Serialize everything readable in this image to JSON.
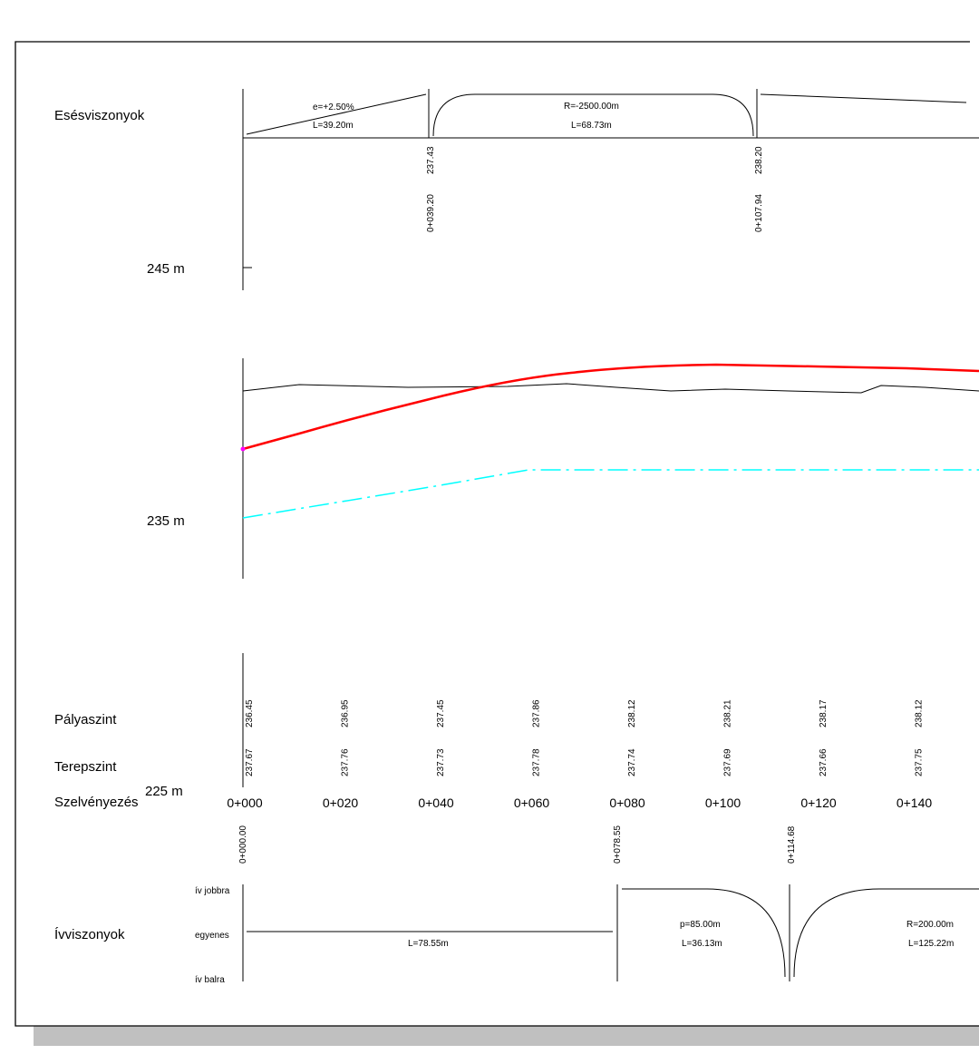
{
  "labels": {
    "esesviszonyok": "Esésviszonyok",
    "palyaszint": "Pályaszint",
    "terepszint": "Terepszint",
    "szelvenyezes": "Szelvényezés",
    "ivviszonyok": "Ívviszonyok",
    "iv_jobbra": "ív jobbra",
    "egyenes": "egyenes",
    "iv_balra": "ív balra"
  },
  "elevation_axis": {
    "label_245": "245 m",
    "label_235": "235 m",
    "label_225": "225 m"
  },
  "grade_section": {
    "segment1_grade": "e=+2.50%",
    "segment1_length": "L=39.20m",
    "vertical_curve_radius": "R=-2500.00m",
    "vertical_curve_length": "L=68.73m",
    "break1_elevation": "237.43",
    "break1_station": "0+039.20",
    "break2_elevation": "238.20",
    "break2_station": "0+107.94"
  },
  "stations": [
    "0+000",
    "0+020",
    "0+040",
    "0+060",
    "0+080",
    "0+100",
    "0+120",
    "0+140"
  ],
  "palyaszint_values": [
    "236.45",
    "236.95",
    "237.45",
    "237.86",
    "238.12",
    "238.21",
    "238.17",
    "238.12"
  ],
  "terepszint_values": [
    "237.67",
    "237.76",
    "237.73",
    "237.78",
    "237.74",
    "237.69",
    "237.66",
    "237.75"
  ],
  "curve_stations": {
    "s1": "0+000.00",
    "s2": "0+078.55",
    "s3": "0+114.68"
  },
  "alignment": {
    "straight_length": "L=78.55m",
    "curve1_p": "p=85.00m",
    "curve1_length": "L=36.13m",
    "curve2_radius": "R=200.00m",
    "curve2_length": "L=125.22m"
  },
  "colors": {
    "design_line": "#ff0000",
    "dashed_line": "#00ffff",
    "terrain_line": "#000000",
    "shadow": "#c0c0c0"
  }
}
